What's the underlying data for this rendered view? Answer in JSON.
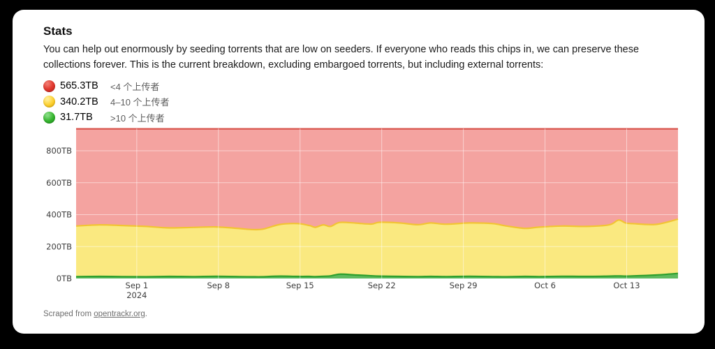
{
  "header": {
    "title": "Stats",
    "description": "You can help out enormously by seeding torrents that are low on seeders. If everyone who reads this chips in, we can preserve these collections forever. This is the current breakdown, excluding embargoed torrents, but including external torrents:"
  },
  "legend": {
    "items": [
      {
        "value": "565.3TB",
        "label": "<4 个上传者",
        "color": "#e23a30"
      },
      {
        "value": "340.2TB",
        "label": "4–10 个上传者",
        "color": "#fdd132"
      },
      {
        "value": "31.7TB",
        "label": ">10 个上传者",
        "color": "#36b52f"
      }
    ]
  },
  "chart_data": {
    "type": "area",
    "stacked": true,
    "title": "",
    "xlabel": "",
    "ylabel": "",
    "x_domain": [
      0,
      51.6
    ],
    "x_domain_note": "days since Aug 27 2024",
    "ylim": [
      0,
      940
    ],
    "grid": true,
    "x_days": [
      0,
      2,
      4,
      6,
      8,
      10,
      12,
      14,
      15,
      16,
      17.5,
      19,
      20,
      20.5,
      21.2,
      21.8,
      22.6,
      24,
      25.3,
      26,
      27.7,
      29.3,
      30.4,
      31.7,
      33.7,
      35.7,
      36.9,
      38.5,
      39.7,
      41.7,
      43.7,
      45.7,
      46.5,
      47.1,
      47.7,
      49.7,
      51.6
    ],
    "x_ticks": [
      {
        "day": 5.2,
        "label": "Sep 1",
        "sublabel": "2024"
      },
      {
        "day": 12.2,
        "label": "Sep 8"
      },
      {
        "day": 19.2,
        "label": "Sep 15"
      },
      {
        "day": 26.2,
        "label": "Sep 22"
      },
      {
        "day": 33.2,
        "label": "Sep 29"
      },
      {
        "day": 40.2,
        "label": "Oct 6"
      },
      {
        "day": 47.2,
        "label": "Oct 13"
      }
    ],
    "y_ticks": [
      {
        "value": 0,
        "label": "0TB"
      },
      {
        "value": 200,
        "label": "200TB"
      },
      {
        "value": 400,
        "label": "400TB"
      },
      {
        "value": 600,
        "label": "600TB"
      },
      {
        "value": 800,
        "label": "800TB"
      }
    ],
    "series": [
      {
        "id": "green",
        "name": ">10 个上传者",
        "current": "31.7TB",
        "fill": "#5fba5f",
        "stroke": "#2d9f2d",
        "values": [
          12,
          13,
          12,
          11,
          13,
          12,
          14,
          12,
          11,
          11,
          15,
          13,
          13,
          12,
          14,
          16,
          27,
          22,
          17,
          15,
          13,
          12,
          13,
          12,
          14,
          12,
          11,
          13,
          12,
          14,
          13,
          15,
          16,
          15,
          16,
          22,
          31.7
        ]
      },
      {
        "id": "yellow",
        "name": "4–10 个上传者",
        "current": "340.2TB",
        "fill": "#fae980",
        "stroke": "#f2c433",
        "values": [
          317,
          323,
          320,
          315,
          304,
          308,
          309,
          301,
          296,
          298,
          324,
          331,
          319,
          309,
          322,
          310,
          324,
          325,
          324,
          337,
          335,
          325,
          335,
          328,
          334,
          332,
          318,
          301,
          310,
          315,
          313,
          321,
          350,
          333,
          328,
          317,
          340.2
        ]
      },
      {
        "id": "red",
        "name": "<4 个上传者",
        "current": "565.3TB",
        "fill": "#f4a3a0",
        "stroke": "#d8554e",
        "values": [
          608.2,
          601.2,
          605.2,
          611.2,
          620.2,
          617.2,
          614.2,
          624.2,
          630.2,
          628.2,
          598.2,
          593.2,
          605.2,
          616.2,
          601.2,
          611.2,
          586.2,
          590.2,
          596.2,
          585.2,
          589.2,
          600.2,
          589.2,
          597.2,
          589.2,
          593.2,
          608.2,
          623.2,
          615.2,
          608.2,
          611.2,
          601.2,
          571.2,
          589.2,
          593.2,
          598.2,
          565.3
        ]
      }
    ]
  },
  "footer": {
    "prefix": "Scraped from ",
    "link_text": "opentrackr.org",
    "suffix": "."
  }
}
